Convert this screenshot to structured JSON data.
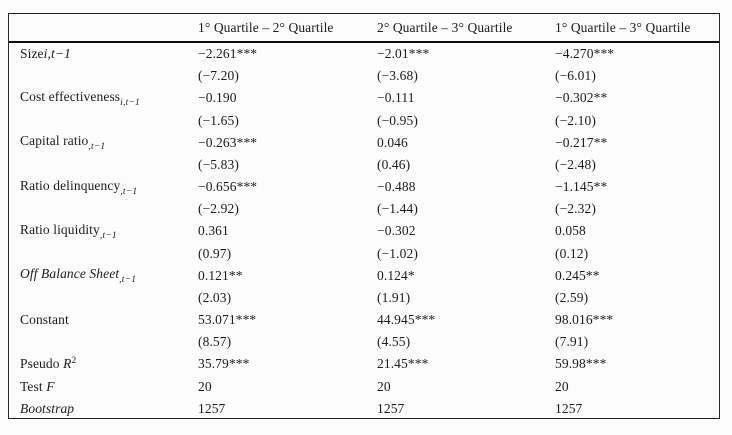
{
  "table": {
    "columns": [
      "1° Quartile – 2° Quartile",
      "2° Quartile – 3° Quartile",
      "1° Quartile – 3° Quartile"
    ],
    "rows": [
      {
        "label": {
          "pre": "Size",
          "inline": "i,t−1"
        },
        "coefs": [
          "−2.261***",
          "−2.01***",
          "−4.270***"
        ],
        "tstats": [
          "(−7.20)",
          "(−3.68)",
          "(−6.01)"
        ]
      },
      {
        "label": {
          "pre": "Cost effectiveness",
          "sub": "i,t−1"
        },
        "coefs": [
          "−0.190",
          "−0.111",
          "−0.302**"
        ],
        "tstats": [
          "(−1.65)",
          "(−0.95)",
          "(−2.10)"
        ]
      },
      {
        "label": {
          "pre": "Capital ratio",
          "sub": ",t−1"
        },
        "coefs": [
          "−0.263***",
          "0.046",
          "−0.217**"
        ],
        "tstats": [
          "(−5.83)",
          "(0.46)",
          "(−2.48)"
        ]
      },
      {
        "label": {
          "pre": "Ratio delinquency",
          "sub": ",t−1"
        },
        "coefs": [
          "−0.656***",
          "−0.488",
          "−1.145**"
        ],
        "tstats": [
          "(−2.92)",
          "(−1.44)",
          "(−2.32)"
        ]
      },
      {
        "label": {
          "pre": "Ratio liquidity",
          "sub": ",t−1"
        },
        "coefs": [
          "0.361",
          "−0.302",
          "0.058"
        ],
        "tstats": [
          "(0.97)",
          "(−1.02)",
          "(0.12)"
        ]
      },
      {
        "label": {
          "pre": "Off Balance Sheet",
          "sub": ",t−1"
        },
        "coefs": [
          "0.121**",
          "0.124*",
          "0.245**"
        ],
        "tstats": [
          "(2.03)",
          "(1.91)",
          "(2.59)"
        ]
      },
      {
        "label": {
          "pre": "Constant"
        },
        "coefs": [
          "53.071***",
          "44.945***",
          "98.016***"
        ],
        "tstats": [
          "(8.57)",
          "(4.55)",
          "(7.91)"
        ]
      }
    ],
    "stats": [
      {
        "label": {
          "pre": "Pseudo ",
          "var": "R",
          "sup": "2"
        },
        "values": [
          "35.79***",
          "21.45***",
          "59.98***"
        ]
      },
      {
        "label": {
          "pre": "Test ",
          "var": "F"
        },
        "values": [
          "20",
          "20",
          "20"
        ]
      },
      {
        "label": {
          "pre": "Bootstrap"
        },
        "values": [
          "1257",
          "1257",
          "1257"
        ]
      }
    ]
  }
}
